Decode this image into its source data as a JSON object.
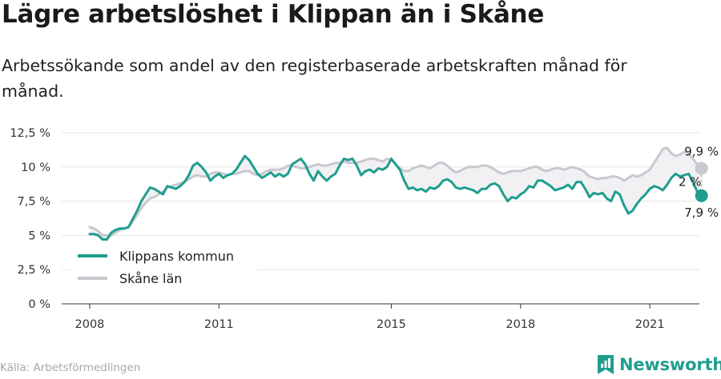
{
  "title": "Lägre arbetslöshet i Klippan än i Skåne",
  "subtitle": "Arbetssökande som andel av den registerbaserade arbetskraften månad för månad.",
  "source": "Källa: Arbetsförmedlingen",
  "brand": {
    "name": "Newsworthy",
    "logo": "newsworthy-logo-icon",
    "color": "#1f9e8e"
  },
  "chart_data": {
    "type": "line",
    "title": "Lägre arbetslöshet i Klippan än i Skåne",
    "subtitle": "Arbetssökande som andel av den registerbaserade arbetskraften månad för månad.",
    "xlabel": "",
    "ylabel": "",
    "x_ticks": [
      "2008",
      "2011",
      "2015",
      "2018",
      "2021"
    ],
    "x_tick_values": [
      2008,
      2011,
      2015,
      2018,
      2021
    ],
    "y_ticks": [
      "0 %",
      "2,5 %",
      "5 %",
      "7,5 %",
      "10 %",
      "12,5 %"
    ],
    "y_tick_values": [
      0,
      2.5,
      5,
      7.5,
      10,
      12.5
    ],
    "ylim": [
      0,
      12.5
    ],
    "xlim": [
      2007.35,
      2022.15
    ],
    "grid": true,
    "legend_position": "bottom-left",
    "series": [
      {
        "name": "Klippans kommun",
        "color": "#1f9e8e",
        "points": [
          [
            2008.0,
            5.1
          ],
          [
            2008.1,
            5.1
          ],
          [
            2008.2,
            5.0
          ],
          [
            2008.3,
            4.7
          ],
          [
            2008.4,
            4.7
          ],
          [
            2008.5,
            5.2
          ],
          [
            2008.6,
            5.4
          ],
          [
            2008.7,
            5.5
          ],
          [
            2008.8,
            5.5
          ],
          [
            2008.9,
            5.6
          ],
          [
            2009.0,
            6.2
          ],
          [
            2009.1,
            6.8
          ],
          [
            2009.2,
            7.5
          ],
          [
            2009.3,
            8.0
          ],
          [
            2009.4,
            8.5
          ],
          [
            2009.5,
            8.4
          ],
          [
            2009.6,
            8.2
          ],
          [
            2009.7,
            8.0
          ],
          [
            2009.8,
            8.6
          ],
          [
            2009.9,
            8.5
          ],
          [
            2010.0,
            8.4
          ],
          [
            2010.1,
            8.6
          ],
          [
            2010.2,
            8.9
          ],
          [
            2010.3,
            9.4
          ],
          [
            2010.4,
            10.1
          ],
          [
            2010.5,
            10.3
          ],
          [
            2010.6,
            10.0
          ],
          [
            2010.7,
            9.6
          ],
          [
            2010.8,
            9.0
          ],
          [
            2010.9,
            9.3
          ],
          [
            2011.0,
            9.5
          ],
          [
            2011.1,
            9.2
          ],
          [
            2011.2,
            9.4
          ],
          [
            2011.3,
            9.5
          ],
          [
            2011.4,
            9.8
          ],
          [
            2011.5,
            10.3
          ],
          [
            2011.6,
            10.8
          ],
          [
            2011.7,
            10.5
          ],
          [
            2011.8,
            10.0
          ],
          [
            2011.9,
            9.5
          ],
          [
            2012.0,
            9.2
          ],
          [
            2012.1,
            9.4
          ],
          [
            2012.2,
            9.6
          ],
          [
            2012.3,
            9.3
          ],
          [
            2012.4,
            9.5
          ],
          [
            2012.5,
            9.3
          ],
          [
            2012.6,
            9.5
          ],
          [
            2012.7,
            10.2
          ],
          [
            2012.8,
            10.4
          ],
          [
            2012.9,
            10.6
          ],
          [
            2013.0,
            10.2
          ],
          [
            2013.1,
            9.5
          ],
          [
            2013.2,
            9.0
          ],
          [
            2013.3,
            9.7
          ],
          [
            2013.4,
            9.3
          ],
          [
            2013.5,
            9.0
          ],
          [
            2013.6,
            9.3
          ],
          [
            2013.7,
            9.5
          ],
          [
            2013.8,
            10.1
          ],
          [
            2013.9,
            10.6
          ],
          [
            2014.0,
            10.5
          ],
          [
            2014.1,
            10.6
          ],
          [
            2014.2,
            10.1
          ],
          [
            2014.3,
            9.4
          ],
          [
            2014.4,
            9.7
          ],
          [
            2014.5,
            9.8
          ],
          [
            2014.6,
            9.6
          ],
          [
            2014.7,
            9.9
          ],
          [
            2014.8,
            9.8
          ],
          [
            2014.9,
            10.0
          ],
          [
            2015.0,
            10.6
          ],
          [
            2015.1,
            10.2
          ],
          [
            2015.2,
            9.8
          ],
          [
            2015.3,
            9.0
          ],
          [
            2015.4,
            8.4
          ],
          [
            2015.5,
            8.5
          ],
          [
            2015.6,
            8.3
          ],
          [
            2015.7,
            8.4
          ],
          [
            2015.8,
            8.2
          ],
          [
            2015.9,
            8.5
          ],
          [
            2016.0,
            8.4
          ],
          [
            2016.1,
            8.6
          ],
          [
            2016.2,
            9.0
          ],
          [
            2016.3,
            9.1
          ],
          [
            2016.4,
            8.9
          ],
          [
            2016.5,
            8.5
          ],
          [
            2016.6,
            8.4
          ],
          [
            2016.7,
            8.5
          ],
          [
            2016.8,
            8.4
          ],
          [
            2016.9,
            8.3
          ],
          [
            2017.0,
            8.1
          ],
          [
            2017.1,
            8.4
          ],
          [
            2017.2,
            8.4
          ],
          [
            2017.3,
            8.7
          ],
          [
            2017.4,
            8.8
          ],
          [
            2017.5,
            8.6
          ],
          [
            2017.6,
            8.0
          ],
          [
            2017.7,
            7.5
          ],
          [
            2017.8,
            7.8
          ],
          [
            2017.9,
            7.7
          ],
          [
            2018.0,
            8.0
          ],
          [
            2018.1,
            8.2
          ],
          [
            2018.2,
            8.6
          ],
          [
            2018.3,
            8.5
          ],
          [
            2018.4,
            9.0
          ],
          [
            2018.5,
            9.0
          ],
          [
            2018.6,
            8.8
          ],
          [
            2018.7,
            8.6
          ],
          [
            2018.8,
            8.3
          ],
          [
            2018.9,
            8.4
          ],
          [
            2019.0,
            8.5
          ],
          [
            2019.1,
            8.7
          ],
          [
            2019.2,
            8.4
          ],
          [
            2019.3,
            8.9
          ],
          [
            2019.4,
            8.9
          ],
          [
            2019.5,
            8.4
          ],
          [
            2019.6,
            7.8
          ],
          [
            2019.7,
            8.1
          ],
          [
            2019.8,
            8.0
          ],
          [
            2019.9,
            8.1
          ],
          [
            2020.0,
            7.7
          ],
          [
            2020.1,
            7.5
          ],
          [
            2020.2,
            8.2
          ],
          [
            2020.3,
            8.0
          ],
          [
            2020.4,
            7.2
          ],
          [
            2020.5,
            6.6
          ],
          [
            2020.6,
            6.8
          ],
          [
            2020.7,
            7.3
          ],
          [
            2020.8,
            7.7
          ],
          [
            2020.9,
            8.0
          ],
          [
            2021.0,
            8.4
          ],
          [
            2021.1,
            8.6
          ],
          [
            2021.2,
            8.5
          ],
          [
            2021.3,
            8.3
          ],
          [
            2021.4,
            8.7
          ],
          [
            2021.5,
            9.2
          ],
          [
            2021.6,
            9.5
          ],
          [
            2021.7,
            9.3
          ],
          [
            2021.8,
            9.4
          ],
          [
            2021.9,
            9.5
          ],
          [
            2022.0,
            8.9
          ],
          [
            2022.1,
            8.2
          ],
          [
            2022.2,
            7.9
          ]
        ]
      },
      {
        "name": "Skåne län",
        "color": "#c8c8cf",
        "points": [
          [
            2008.0,
            5.6
          ],
          [
            2008.1,
            5.5
          ],
          [
            2008.2,
            5.3
          ],
          [
            2008.3,
            5.0
          ],
          [
            2008.4,
            5.0
          ],
          [
            2008.5,
            5.0
          ],
          [
            2008.6,
            5.2
          ],
          [
            2008.7,
            5.4
          ],
          [
            2008.8,
            5.5
          ],
          [
            2008.9,
            5.6
          ],
          [
            2009.0,
            6.0
          ],
          [
            2009.1,
            6.5
          ],
          [
            2009.2,
            7.0
          ],
          [
            2009.3,
            7.4
          ],
          [
            2009.4,
            7.7
          ],
          [
            2009.5,
            7.8
          ],
          [
            2009.6,
            8.0
          ],
          [
            2009.7,
            8.2
          ],
          [
            2009.8,
            8.5
          ],
          [
            2009.9,
            8.6
          ],
          [
            2010.0,
            8.7
          ],
          [
            2010.1,
            8.8
          ],
          [
            2010.2,
            8.9
          ],
          [
            2010.3,
            9.1
          ],
          [
            2010.4,
            9.3
          ],
          [
            2010.5,
            9.4
          ],
          [
            2010.6,
            9.3
          ],
          [
            2010.7,
            9.3
          ],
          [
            2010.8,
            9.5
          ],
          [
            2010.9,
            9.6
          ],
          [
            2011.0,
            9.6
          ],
          [
            2011.1,
            9.5
          ],
          [
            2011.2,
            9.4
          ],
          [
            2011.3,
            9.5
          ],
          [
            2011.4,
            9.5
          ],
          [
            2011.5,
            9.6
          ],
          [
            2011.6,
            9.7
          ],
          [
            2011.7,
            9.7
          ],
          [
            2011.8,
            9.5
          ],
          [
            2011.9,
            9.4
          ],
          [
            2012.0,
            9.5
          ],
          [
            2012.1,
            9.7
          ],
          [
            2012.2,
            9.8
          ],
          [
            2012.3,
            9.8
          ],
          [
            2012.4,
            9.8
          ],
          [
            2012.5,
            9.9
          ],
          [
            2012.6,
            10.1
          ],
          [
            2012.7,
            10.1
          ],
          [
            2012.8,
            10.0
          ],
          [
            2012.9,
            9.9
          ],
          [
            2013.0,
            9.9
          ],
          [
            2013.1,
            10.0
          ],
          [
            2013.2,
            10.1
          ],
          [
            2013.3,
            10.2
          ],
          [
            2013.4,
            10.1
          ],
          [
            2013.5,
            10.1
          ],
          [
            2013.6,
            10.2
          ],
          [
            2013.7,
            10.3
          ],
          [
            2013.8,
            10.3
          ],
          [
            2013.9,
            10.4
          ],
          [
            2014.0,
            10.3
          ],
          [
            2014.1,
            10.3
          ],
          [
            2014.2,
            10.3
          ],
          [
            2014.3,
            10.4
          ],
          [
            2014.4,
            10.5
          ],
          [
            2014.5,
            10.6
          ],
          [
            2014.6,
            10.6
          ],
          [
            2014.7,
            10.5
          ],
          [
            2014.8,
            10.4
          ],
          [
            2014.9,
            10.6
          ],
          [
            2015.0,
            10.5
          ],
          [
            2015.1,
            10.2
          ],
          [
            2015.2,
            9.9
          ],
          [
            2015.3,
            9.7
          ],
          [
            2015.4,
            9.7
          ],
          [
            2015.5,
            9.9
          ],
          [
            2015.6,
            10.0
          ],
          [
            2015.7,
            10.1
          ],
          [
            2015.8,
            10.0
          ],
          [
            2015.9,
            9.9
          ],
          [
            2016.0,
            10.1
          ],
          [
            2016.1,
            10.3
          ],
          [
            2016.2,
            10.3
          ],
          [
            2016.3,
            10.1
          ],
          [
            2016.4,
            9.8
          ],
          [
            2016.5,
            9.6
          ],
          [
            2016.6,
            9.7
          ],
          [
            2016.7,
            9.9
          ],
          [
            2016.8,
            10.0
          ],
          [
            2016.9,
            10.0
          ],
          [
            2017.0,
            10.0
          ],
          [
            2017.1,
            10.1
          ],
          [
            2017.2,
            10.1
          ],
          [
            2017.3,
            10.0
          ],
          [
            2017.4,
            9.8
          ],
          [
            2017.5,
            9.6
          ],
          [
            2017.6,
            9.5
          ],
          [
            2017.7,
            9.6
          ],
          [
            2017.8,
            9.7
          ],
          [
            2017.9,
            9.7
          ],
          [
            2018.0,
            9.7
          ],
          [
            2018.1,
            9.8
          ],
          [
            2018.2,
            9.9
          ],
          [
            2018.3,
            10.0
          ],
          [
            2018.4,
            10.0
          ],
          [
            2018.5,
            9.8
          ],
          [
            2018.6,
            9.7
          ],
          [
            2018.7,
            9.8
          ],
          [
            2018.8,
            9.9
          ],
          [
            2018.9,
            9.9
          ],
          [
            2019.0,
            9.8
          ],
          [
            2019.1,
            9.9
          ],
          [
            2019.2,
            10.0
          ],
          [
            2019.3,
            9.9
          ],
          [
            2019.4,
            9.8
          ],
          [
            2019.5,
            9.6
          ],
          [
            2019.6,
            9.3
          ],
          [
            2019.7,
            9.2
          ],
          [
            2019.8,
            9.1
          ],
          [
            2019.9,
            9.2
          ],
          [
            2020.0,
            9.2
          ],
          [
            2020.1,
            9.3
          ],
          [
            2020.2,
            9.3
          ],
          [
            2020.3,
            9.2
          ],
          [
            2020.4,
            9.0
          ],
          [
            2020.5,
            9.2
          ],
          [
            2020.6,
            9.4
          ],
          [
            2020.7,
            9.3
          ],
          [
            2020.8,
            9.4
          ],
          [
            2020.9,
            9.6
          ],
          [
            2021.0,
            9.8
          ],
          [
            2021.1,
            10.3
          ],
          [
            2021.2,
            10.8
          ],
          [
            2021.3,
            11.3
          ],
          [
            2021.4,
            11.4
          ],
          [
            2021.5,
            11.0
          ],
          [
            2021.6,
            10.8
          ],
          [
            2021.7,
            10.9
          ],
          [
            2021.8,
            11.1
          ],
          [
            2021.9,
            11.0
          ],
          [
            2022.0,
            10.6
          ],
          [
            2022.1,
            10.2
          ],
          [
            2022.2,
            9.9
          ]
        ]
      }
    ],
    "annotations": {
      "end_label_top": "9,9 %",
      "end_label_bottom": "7,9 %",
      "difference_label": "2 %"
    }
  }
}
